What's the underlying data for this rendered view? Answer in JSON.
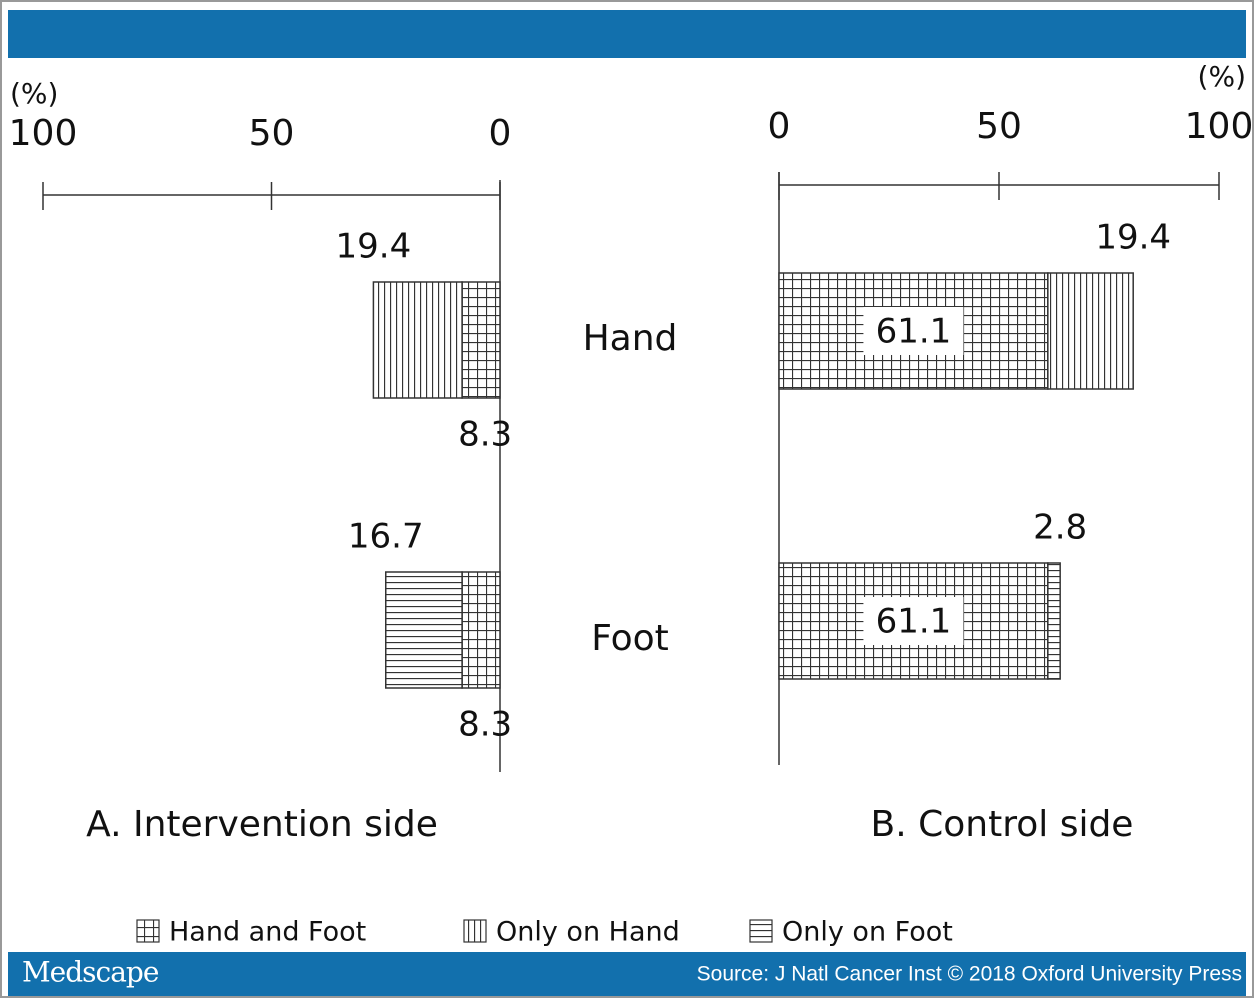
{
  "chart_data": {
    "type": "bar",
    "orientation": "horizontal",
    "stacked": true,
    "categories": [
      "Hand",
      "Foot"
    ],
    "panels": [
      {
        "title": "A. Intervention side",
        "xlabel": "(%)",
        "xlim": [
          100,
          0
        ],
        "xticks": [
          100,
          50,
          0
        ]
      },
      {
        "title": "B. Control side",
        "xlabel": "(%)",
        "xlim": [
          0,
          100
        ],
        "xticks": [
          0,
          50,
          100
        ]
      }
    ],
    "series": [
      {
        "name": "Hand and Foot",
        "pattern": "grid",
        "values": [
          [
            8.3,
            8.3
          ],
          [
            61.1,
            61.1
          ]
        ]
      },
      {
        "name": "Only on Hand",
        "pattern": "vertical",
        "values": [
          [
            19.4,
            null
          ],
          [
            19.4,
            null
          ]
        ]
      },
      {
        "name": "Only on Foot",
        "pattern": "horizontal",
        "values": [
          [
            null,
            16.7
          ],
          [
            null,
            2.8
          ]
        ]
      }
    ]
  },
  "footer": {
    "brand": "Medscape",
    "source": "Source: J Natl Cancer Inst © 2018 Oxford University Press"
  }
}
